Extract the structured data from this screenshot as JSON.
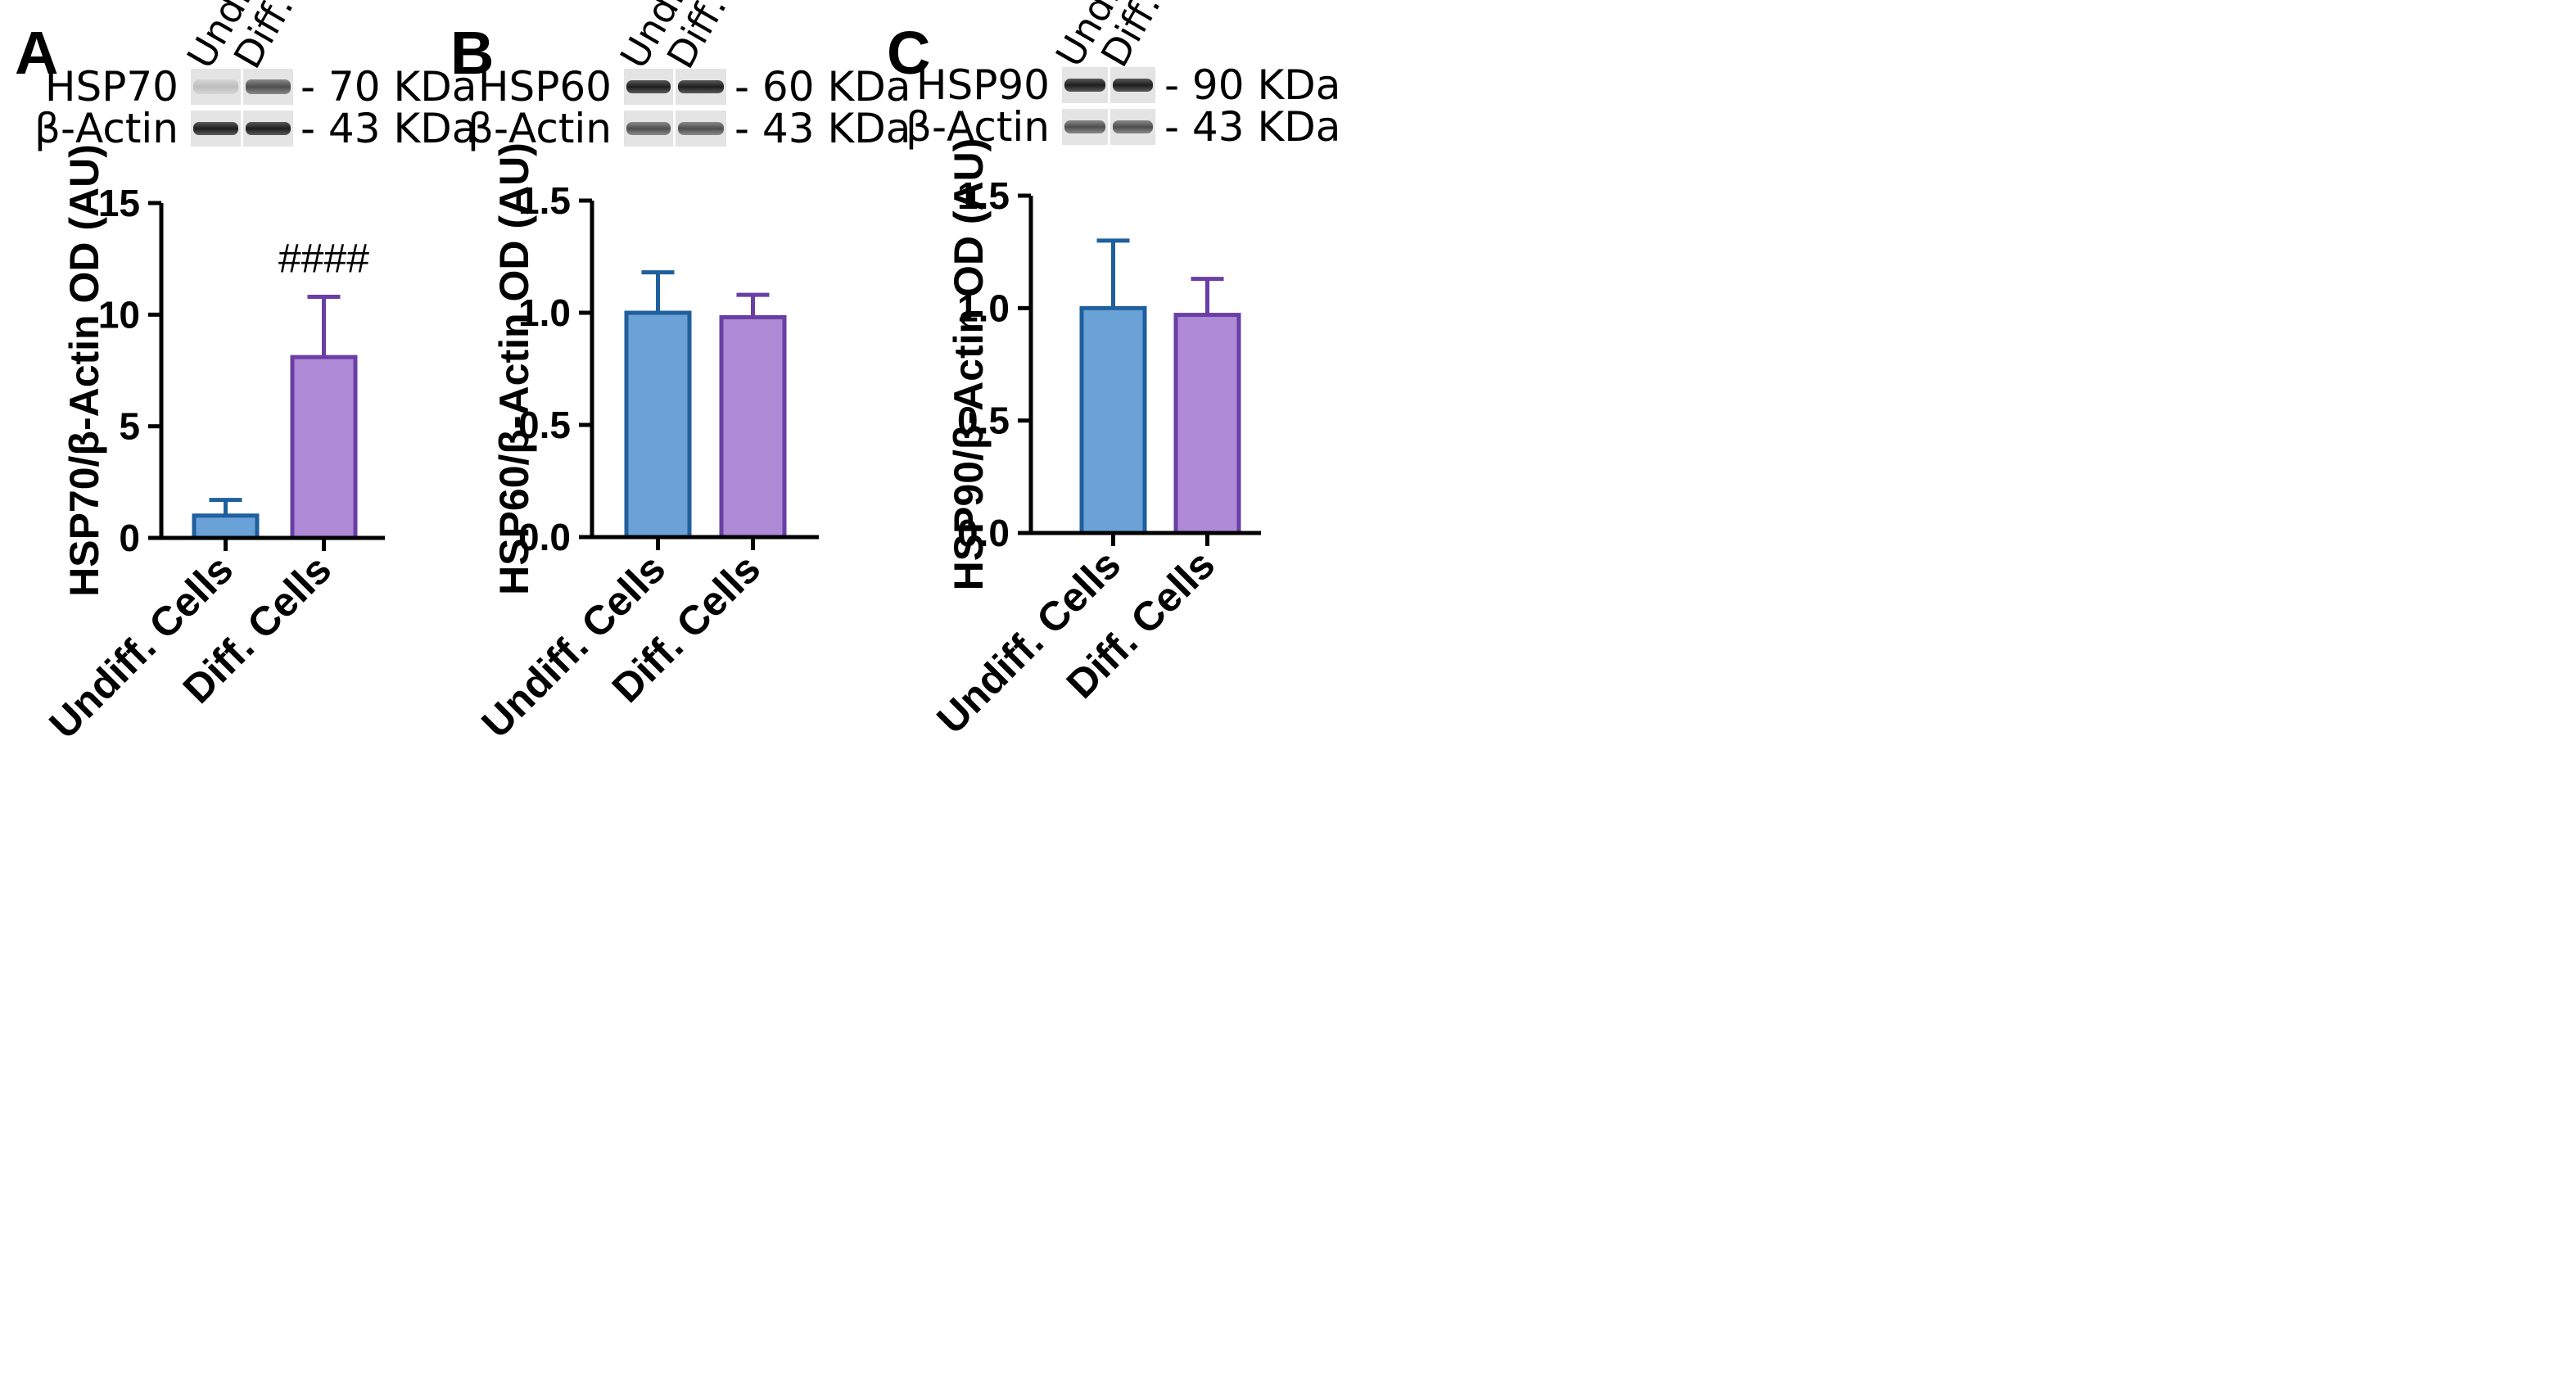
{
  "colors": {
    "undiff_fill": "#6aa2d8",
    "undiff_edge": "#1f5f9e",
    "diff_fill": "#ae8ad7",
    "diff_edge": "#6a3fa5",
    "axis": "#000000"
  },
  "chart_data": [
    {
      "type": "bar",
      "panel": "A",
      "blot": {
        "lanes": [
          "Undiff.",
          "Diff."
        ],
        "rows": [
          {
            "protein": "HSP70",
            "size": "- 70 KDa"
          },
          {
            "protein": "β-Actin",
            "size": "- 43 KDa"
          }
        ]
      },
      "categories": [
        "Undiff. Cells",
        "Diff. Cells"
      ],
      "values": [
        1.0,
        8.1
      ],
      "errors": [
        0.7,
        2.7
      ],
      "ylabel": "HSP70/β-Actin OD (AU)",
      "ylim": [
        0,
        15
      ],
      "yticks": [
        0,
        5,
        10,
        15
      ],
      "ytick_labels": [
        "0",
        "5",
        "10",
        "15"
      ],
      "annotations": [
        {
          "category": "Diff. Cells",
          "text": "####"
        }
      ]
    },
    {
      "type": "bar",
      "panel": "B",
      "blot": {
        "lanes": [
          "Undiff.",
          "Diff."
        ],
        "rows": [
          {
            "protein": "HSP60",
            "size": "- 60 KDa"
          },
          {
            "protein": "β-Actin",
            "size": "- 43 KDa"
          }
        ]
      },
      "categories": [
        "Undiff. Cells",
        "Diff. Cells"
      ],
      "values": [
        1.0,
        0.98
      ],
      "errors": [
        0.18,
        0.1
      ],
      "ylabel": "HSP60/β-Actin OD (AU)",
      "ylim": [
        0,
        1.5
      ],
      "yticks": [
        0,
        0.5,
        1.0,
        1.5
      ],
      "ytick_labels": [
        "0.0",
        "0.5",
        "1.0",
        "1.5"
      ],
      "annotations": []
    },
    {
      "type": "bar",
      "panel": "C",
      "blot": {
        "lanes": [
          "Undiff.",
          "Diff."
        ],
        "rows": [
          {
            "protein": "HSP90",
            "size": "- 90 KDa"
          },
          {
            "protein": "β-Actin",
            "size": "- 43 KDa"
          }
        ]
      },
      "categories": [
        "Undiff. Cells",
        "Diff. Cells"
      ],
      "values": [
        1.0,
        0.97
      ],
      "errors": [
        0.3,
        0.16
      ],
      "ylabel": "HSP90/β-Actin OD (AU)",
      "ylim": [
        0,
        1.5
      ],
      "yticks": [
        0,
        0.5,
        1.0,
        1.5
      ],
      "ytick_labels": [
        "0.0",
        "0.5",
        "1.0",
        "1.5"
      ],
      "annotations": []
    }
  ]
}
